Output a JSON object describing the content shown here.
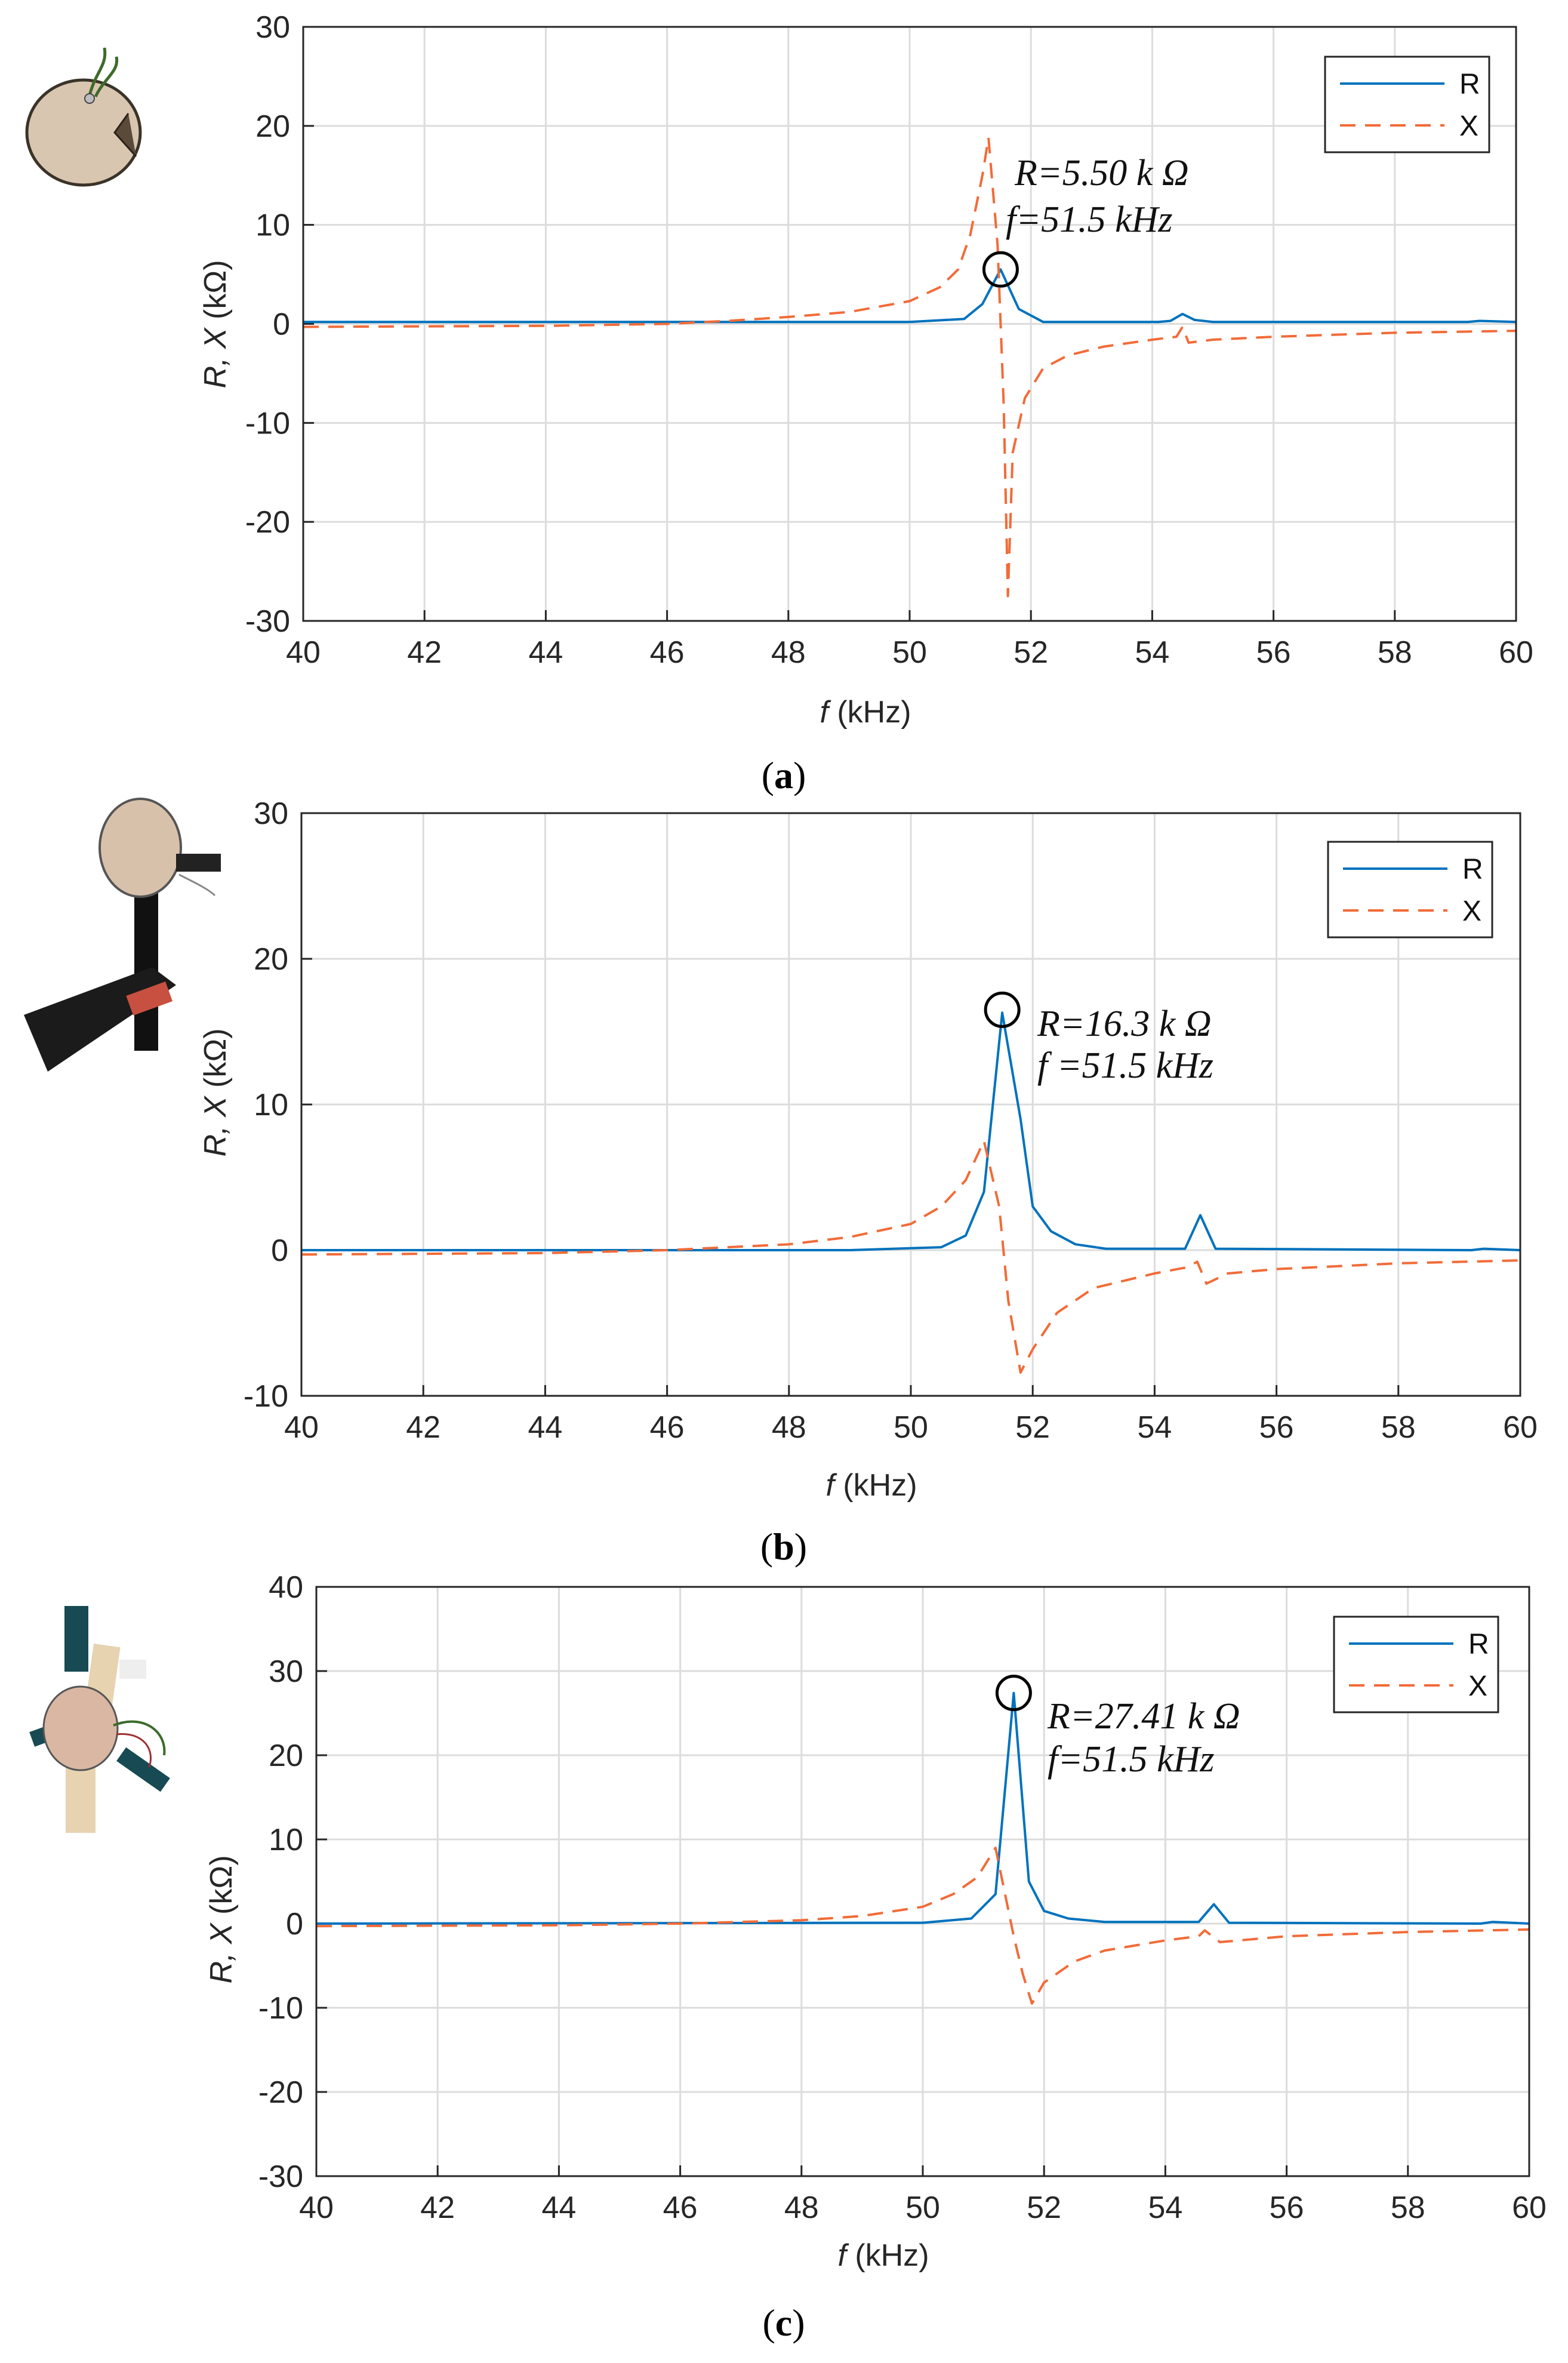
{
  "colors": {
    "R": "#0072BD",
    "X": "#F26B38",
    "grid": "#DCDCDC",
    "axis": "#262626",
    "marker": "#000000"
  },
  "photos": [
    {
      "panel": "a",
      "icon": "piezo-disc-with-wires-photo"
    },
    {
      "panel": "b",
      "icon": "piezo-disc-on-black-mount-photo"
    },
    {
      "panel": "c",
      "icon": "piezo-disc-on-printed-mount-photo"
    }
  ],
  "chart_data": [
    {
      "type": "line",
      "panel_caption": "a",
      "xlabel_var": "f",
      "xlabel_unit": " (kHz)",
      "ylabel_vars": "R, X",
      "ylabel_unit": " (kΩ)",
      "xlim": [
        40,
        60
      ],
      "ylim": [
        -30,
        30
      ],
      "xticks": [
        40,
        42,
        44,
        46,
        48,
        50,
        52,
        54,
        56,
        58,
        60
      ],
      "yticks": [
        -30,
        -20,
        -10,
        0,
        10,
        20,
        30
      ],
      "grid": true,
      "legend_position": "top-right",
      "legend": [
        "R",
        "X"
      ],
      "annotation": {
        "line1": "R=5.50 k Ω",
        "line2": "f=51.5 kHz",
        "point": [
          51.5,
          5.5
        ]
      },
      "series": [
        {
          "name": "R",
          "style": "solid",
          "x": [
            40,
            50,
            50.9,
            51.2,
            51.5,
            51.8,
            52.2,
            54.1,
            54.3,
            54.5,
            54.7,
            55,
            59.2,
            59.4,
            60
          ],
          "y": [
            0.2,
            0.2,
            0.5,
            2.0,
            5.5,
            1.5,
            0.2,
            0.2,
            0.3,
            1.0,
            0.4,
            0.2,
            0.2,
            0.3,
            0.2
          ]
        },
        {
          "name": "X",
          "style": "dashed",
          "x": [
            40,
            44,
            46,
            47,
            48,
            49,
            50,
            50.5,
            50.8,
            51.0,
            51.2,
            51.3,
            51.45,
            51.55,
            51.62,
            51.7,
            51.9,
            52.2,
            52.6,
            53.2,
            54.0,
            54.4,
            54.5,
            54.6,
            55,
            56,
            58,
            60
          ],
          "y": [
            -0.3,
            -0.2,
            0.0,
            0.3,
            0.7,
            1.2,
            2.3,
            3.7,
            5.5,
            9.0,
            15.0,
            18.8,
            8.0,
            -8.0,
            -27.5,
            -13.0,
            -7.5,
            -4.5,
            -3.2,
            -2.3,
            -1.6,
            -1.3,
            -0.3,
            -1.9,
            -1.6,
            -1.3,
            -0.9,
            -0.7
          ]
        }
      ]
    },
    {
      "type": "line",
      "panel_caption": "b",
      "xlabel_var": "f",
      "xlabel_unit": " (kHz)",
      "ylabel_vars": "R, X",
      "ylabel_unit": " (kΩ)",
      "xlim": [
        40,
        60
      ],
      "ylim": [
        -10,
        30
      ],
      "xticks": [
        40,
        42,
        44,
        46,
        48,
        50,
        52,
        54,
        56,
        58,
        60
      ],
      "yticks": [
        -10,
        0,
        10,
        20,
        30
      ],
      "grid": true,
      "legend_position": "top-right",
      "legend": [
        "R",
        "X"
      ],
      "annotation": {
        "line1": "R=16.3 k Ω",
        "line2": "f =51.5 kHz",
        "point": [
          51.5,
          16.5
        ]
      },
      "series": [
        {
          "name": "R",
          "style": "solid",
          "x": [
            40,
            49,
            50.5,
            50.9,
            51.2,
            51.5,
            51.8,
            52.0,
            52.3,
            52.7,
            53.2,
            54.5,
            54.75,
            55.0,
            59.2,
            59.4,
            60
          ],
          "y": [
            0,
            0,
            0.2,
            1.0,
            4.0,
            16.3,
            9.0,
            3.0,
            1.3,
            0.4,
            0.1,
            0.1,
            2.4,
            0.1,
            0,
            0.1,
            0
          ],
          "_": ""
        },
        {
          "name": "X",
          "style": "dashed",
          "x": [
            40,
            44,
            46,
            48,
            49,
            50,
            50.5,
            50.9,
            51.2,
            51.45,
            51.6,
            51.8,
            52.0,
            52.4,
            53.0,
            54.0,
            54.5,
            54.7,
            54.85,
            55.2,
            56,
            58,
            60
          ],
          "y": [
            -0.3,
            -0.2,
            0,
            0.4,
            0.9,
            1.8,
            3.0,
            4.8,
            7.5,
            3.0,
            -3.5,
            -8.4,
            -6.8,
            -4.3,
            -2.6,
            -1.6,
            -1.2,
            -0.8,
            -2.3,
            -1.6,
            -1.3,
            -0.9,
            -0.7
          ]
        }
      ]
    },
    {
      "type": "line",
      "panel_caption": "c",
      "xlabel_var": "f",
      "xlabel_unit": " (kHz)",
      "ylabel_vars": "R, X",
      "ylabel_unit": " (kΩ)",
      "xlim": [
        40,
        60
      ],
      "ylim": [
        -30,
        40
      ],
      "xticks": [
        40,
        42,
        44,
        46,
        48,
        50,
        52,
        54,
        56,
        58,
        60
      ],
      "yticks": [
        -30,
        -20,
        -10,
        0,
        10,
        20,
        30,
        40
      ],
      "grid": true,
      "legend_position": "top-right",
      "legend": [
        "R",
        "X"
      ],
      "annotation": {
        "line1": "R=27.41 k Ω",
        "line2": "f=51.5 kHz",
        "point": [
          51.5,
          27.4
        ]
      },
      "series": [
        {
          "name": "R",
          "style": "solid",
          "x": [
            40,
            50,
            50.8,
            51.2,
            51.5,
            51.75,
            52.0,
            52.4,
            53.0,
            54.55,
            54.8,
            55.05,
            59.2,
            59.4,
            60
          ],
          "y": [
            0,
            0.1,
            0.6,
            3.5,
            27.4,
            5.0,
            1.5,
            0.6,
            0.2,
            0.2,
            2.3,
            0.1,
            0,
            0.2,
            0
          ]
        },
        {
          "name": "X",
          "style": "dashed",
          "x": [
            40,
            44,
            46,
            48,
            49,
            50,
            50.5,
            50.9,
            51.2,
            51.5,
            51.65,
            51.8,
            52.0,
            52.5,
            53.0,
            54.0,
            54.55,
            54.65,
            54.9,
            56,
            58,
            60
          ],
          "y": [
            -0.3,
            -0.2,
            0,
            0.4,
            0.9,
            2.0,
            3.5,
            5.5,
            9.0,
            -1.5,
            -6.0,
            -9.5,
            -7.0,
            -4.5,
            -3.2,
            -2.0,
            -1.5,
            -0.8,
            -2.2,
            -1.5,
            -1.0,
            -0.7
          ]
        }
      ]
    }
  ]
}
